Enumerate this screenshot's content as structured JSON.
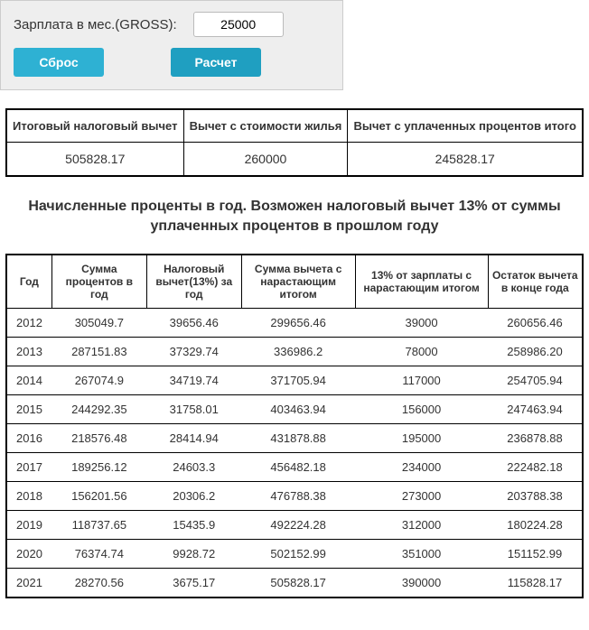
{
  "form": {
    "salary_label": "Зарплата в мес.(GROSS):",
    "salary_value": "25000",
    "reset_label": "Сброс",
    "calc_label": "Расчет"
  },
  "summary": {
    "headers": [
      "Итоговый налоговый вычет",
      "Вычет с стоимости жилья",
      "Вычет с уплаченных процентов итого"
    ],
    "values": [
      "505828.17",
      "260000",
      "245828.17"
    ]
  },
  "section_title": "Начисленные проценты в год. Возможен налоговый вычет 13% от суммы уплаченных процентов в прошлом году",
  "detail": {
    "headers": [
      "Год",
      "Сумма процентов в год",
      "Налоговый вычет(13%) за год",
      "Сумма вычета с нарастающим итогом",
      "13% от зарплаты с нарастающим итогом",
      "Остаток вычета в конце года"
    ],
    "rows": [
      [
        "2012",
        "305049.7",
        "39656.46",
        "299656.46",
        "39000",
        "260656.46"
      ],
      [
        "2013",
        "287151.83",
        "37329.74",
        "336986.2",
        "78000",
        "258986.20"
      ],
      [
        "2014",
        "267074.9",
        "34719.74",
        "371705.94",
        "117000",
        "254705.94"
      ],
      [
        "2015",
        "244292.35",
        "31758.01",
        "403463.94",
        "156000",
        "247463.94"
      ],
      [
        "2016",
        "218576.48",
        "28414.94",
        "431878.88",
        "195000",
        "236878.88"
      ],
      [
        "2017",
        "189256.12",
        "24603.3",
        "456482.18",
        "234000",
        "222482.18"
      ],
      [
        "2018",
        "156201.56",
        "20306.2",
        "476788.38",
        "273000",
        "203788.38"
      ],
      [
        "2019",
        "118737.65",
        "15435.9",
        "492224.28",
        "312000",
        "180224.28"
      ],
      [
        "2020",
        "76374.74",
        "9928.72",
        "502152.99",
        "351000",
        "151152.99"
      ],
      [
        "2021",
        "28270.56",
        "3675.17",
        "505828.17",
        "390000",
        "115828.17"
      ]
    ]
  }
}
